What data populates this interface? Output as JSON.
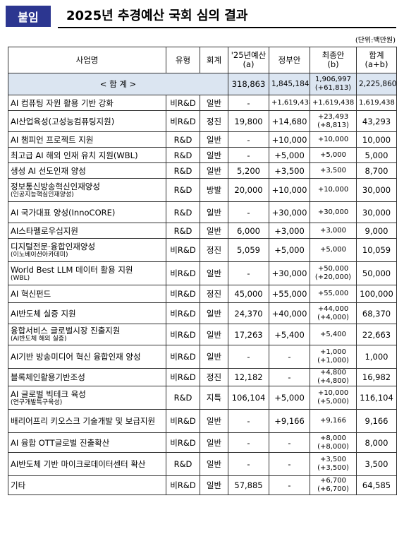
{
  "header": {
    "badge": "붙임",
    "title": "2025년 추경예산 국회 심의 결과",
    "unit": "(단위:백만원)"
  },
  "columns": {
    "name": "사업명",
    "type": "유형",
    "account": "회계",
    "budget_line1": "'25년예산",
    "budget_line2": "(a)",
    "gov": "정부안",
    "final_line1": "최종안",
    "final_line2": "(b)",
    "sum_line1": "합계",
    "sum_line2": "(a+b)"
  },
  "total": {
    "label": "< 합 계 >",
    "budget": "318,863",
    "gov": "1,845,184",
    "final": "1,906,997",
    "final_sub": "(+61,813)",
    "sum": "2,225,860"
  },
  "rows": [
    {
      "name": "AI 컴퓨팅 자원 활용 기반 강화",
      "name_sub": "",
      "type": "비R&D",
      "account": "일반",
      "budget": "-",
      "gov": "+1,619,438",
      "final": "+1,619,438",
      "final_sub": "",
      "sum": "1,619,438"
    },
    {
      "name": "AI산업육성(고성능컴퓨팅지원)",
      "name_sub": "",
      "type": "비R&D",
      "account": "정진",
      "budget": "19,800",
      "gov": "+14,680",
      "final": "+23,493",
      "final_sub": "(+8,813)",
      "sum": "43,293"
    },
    {
      "name": "AI 챔피언 프로젝트 지원",
      "name_sub": "",
      "type": "R&D",
      "account": "일반",
      "budget": "-",
      "gov": "+10,000",
      "final": "+10,000",
      "final_sub": "",
      "sum": "10,000"
    },
    {
      "name": "최고급 AI 해외 인재 유치 지원(WBL)",
      "name_sub": "",
      "type": "R&D",
      "account": "일반",
      "budget": "-",
      "gov": "+5,000",
      "final": "+5,000",
      "final_sub": "",
      "sum": "5,000"
    },
    {
      "name": "생성 AI 선도인재 양성",
      "name_sub": "",
      "type": "R&D",
      "account": "일반",
      "budget": "5,200",
      "gov": "+3,500",
      "final": "+3,500",
      "final_sub": "",
      "sum": "8,700"
    },
    {
      "name": "정보통신방송혁신인재양성",
      "name_sub": "(인공지능핵심인재양성)",
      "type": "R&D",
      "account": "방발",
      "budget": "20,000",
      "gov": "+10,000",
      "final": "+10,000",
      "final_sub": "",
      "sum": "30,000"
    },
    {
      "name": "AI 국가대표 양성(InnoCORE)",
      "name_sub": "",
      "type": "R&D",
      "account": "일반",
      "budget": "-",
      "gov": "+30,000",
      "final": "+30,000",
      "final_sub": "",
      "sum": "30,000"
    },
    {
      "name": "AI스타펠로우십지원",
      "name_sub": "",
      "type": "R&D",
      "account": "일반",
      "budget": "6,000",
      "gov": "+3,000",
      "final": "+3,000",
      "final_sub": "",
      "sum": "9,000"
    },
    {
      "name": "디지털전문·융합인재양성",
      "name_sub": "(이노베이션아카데미)",
      "type": "비R&D",
      "account": "정진",
      "budget": "5,059",
      "gov": "+5,000",
      "final": "+5,000",
      "final_sub": "",
      "sum": "10,059"
    },
    {
      "name": "World Best LLM 데이터 활용 지원",
      "name_sub": "(WBL)",
      "type": "비R&D",
      "account": "일반",
      "budget": "-",
      "gov": "+30,000",
      "final": "+50,000",
      "final_sub": "(+20,000)",
      "sum": "50,000"
    },
    {
      "name": "AI 혁신펀드",
      "name_sub": "",
      "type": "비R&D",
      "account": "정진",
      "budget": "45,000",
      "gov": "+55,000",
      "final": "+55,000",
      "final_sub": "",
      "sum": "100,000"
    },
    {
      "name": "AI반도체 실증 지원",
      "name_sub": "",
      "type": "비R&D",
      "account": "일반",
      "budget": "24,370",
      "gov": "+40,000",
      "final": "+44,000",
      "final_sub": "(+4,000)",
      "sum": "68,370"
    },
    {
      "name": "융합서비스 글로벌시장 진출지원",
      "name_sub": "(AI반도체 해외 실증)",
      "type": "비R&D",
      "account": "일반",
      "budget": "17,263",
      "gov": "+5,400",
      "final": "+5,400",
      "final_sub": "",
      "sum": "22,663"
    },
    {
      "name": "AI기반 방송미디어 혁신 융합인재 양성",
      "name_sub": "",
      "type": "비R&D",
      "account": "일반",
      "budget": "-",
      "gov": "-",
      "final": "+1,000",
      "final_sub": "(+1,000)",
      "sum": "1,000"
    },
    {
      "name": "블록체인활용기반조성",
      "name_sub": "",
      "type": "비R&D",
      "account": "정진",
      "budget": "12,182",
      "gov": "-",
      "final": "+4,800",
      "final_sub": "(+4,800)",
      "sum": "16,982"
    },
    {
      "name": "AI 글로벌 빅테크 육성",
      "name_sub": "(연구개발특구육성)",
      "type": "R&D",
      "account": "지특",
      "budget": "106,104",
      "gov": "+5,000",
      "final": "+10,000",
      "final_sub": "(+5,000)",
      "sum": "116,104"
    },
    {
      "name": "배리어프리 키오스크 기술개발 및 보급지원",
      "name_sub": "",
      "type": "비R&D",
      "account": "일반",
      "budget": "-",
      "gov": "+9,166",
      "final": "+9,166",
      "final_sub": "",
      "sum": "9,166"
    },
    {
      "name": "AI 융합 OTT글로벌 진출확산",
      "name_sub": "",
      "type": "비R&D",
      "account": "일반",
      "budget": "-",
      "gov": "-",
      "final": "+8,000",
      "final_sub": "(+8,000)",
      "sum": "8,000"
    },
    {
      "name": "AI반도체 기반 마이크로데이터센터 확산",
      "name_sub": "",
      "type": "R&D",
      "account": "일반",
      "budget": "-",
      "gov": "-",
      "final": "+3,500",
      "final_sub": "(+3,500)",
      "sum": "3,500"
    },
    {
      "name": "기타",
      "name_sub": "",
      "type": "비R&D",
      "account": "일반",
      "budget": "57,885",
      "gov": "-",
      "final": "+6,700",
      "final_sub": "(+6,700)",
      "sum": "64,585"
    }
  ]
}
